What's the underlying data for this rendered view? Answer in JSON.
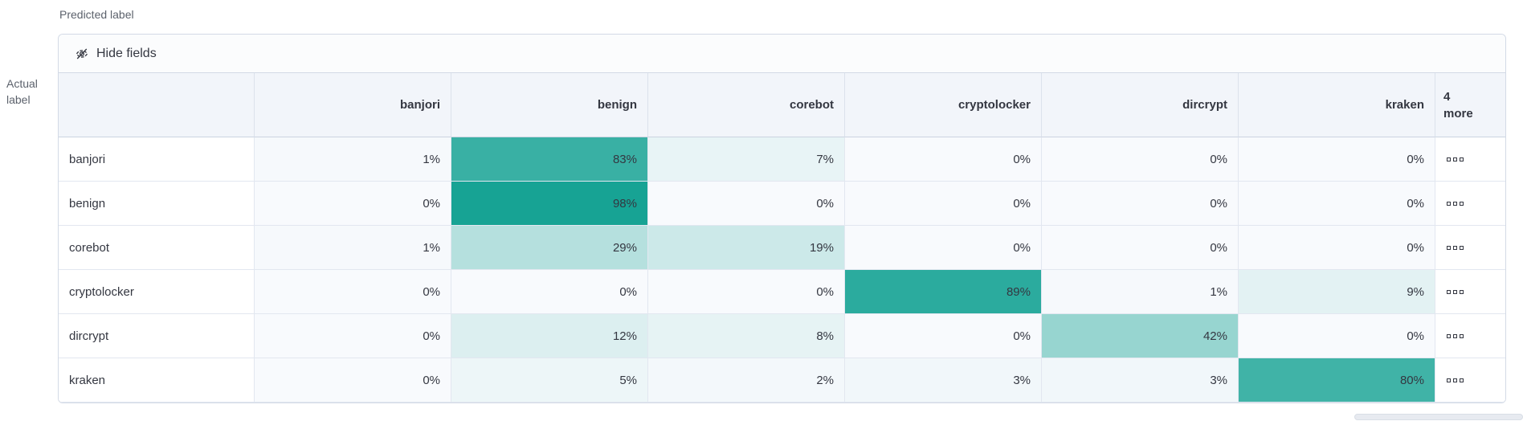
{
  "axes": {
    "predicted_label": "Predicted label",
    "actual_line1": "Actual",
    "actual_line2": "label"
  },
  "toolbar": {
    "hide_fields_label": "Hide fields"
  },
  "columns": [
    "banjori",
    "benign",
    "corebot",
    "cryptolocker",
    "dircrypt",
    "kraken"
  ],
  "more_column": {
    "line1": "4",
    "line2": "more"
  },
  "rows": [
    {
      "label": "banjori",
      "values": [
        1,
        83,
        7,
        0,
        0,
        0
      ]
    },
    {
      "label": "benign",
      "values": [
        0,
        98,
        0,
        0,
        0,
        0
      ]
    },
    {
      "label": "corebot",
      "values": [
        1,
        29,
        19,
        0,
        0,
        0
      ]
    },
    {
      "label": "cryptolocker",
      "values": [
        0,
        0,
        0,
        89,
        1,
        9
      ]
    },
    {
      "label": "dircrypt",
      "values": [
        0,
        12,
        8,
        0,
        42,
        0
      ]
    },
    {
      "label": "kraken",
      "values": [
        0,
        5,
        2,
        3,
        3,
        80
      ]
    }
  ],
  "value_suffix": "%",
  "colors": {
    "heat_base": "#12a192",
    "zero_cell_bg": "#f8fafd",
    "header_bg": "#f2f5fa",
    "panel_border": "#d3dae6",
    "text": "#343741"
  },
  "chart_data": {
    "type": "heatmap",
    "x_axis_label": "Predicted label",
    "y_axis_label": "Actual label",
    "x_categories": [
      "banjori",
      "benign",
      "corebot",
      "cryptolocker",
      "dircrypt",
      "kraken"
    ],
    "y_categories": [
      "banjori",
      "benign",
      "corebot",
      "cryptolocker",
      "dircrypt",
      "kraken"
    ],
    "values_percent": [
      [
        1,
        83,
        7,
        0,
        0,
        0
      ],
      [
        0,
        98,
        0,
        0,
        0,
        0
      ],
      [
        1,
        29,
        19,
        0,
        0,
        0
      ],
      [
        0,
        0,
        0,
        89,
        1,
        9
      ],
      [
        0,
        12,
        8,
        0,
        42,
        0
      ],
      [
        0,
        5,
        2,
        3,
        3,
        80
      ]
    ],
    "hidden_columns_note": "4 more",
    "color_scale": {
      "low": "#f8fafd",
      "high": "#12a192"
    }
  }
}
